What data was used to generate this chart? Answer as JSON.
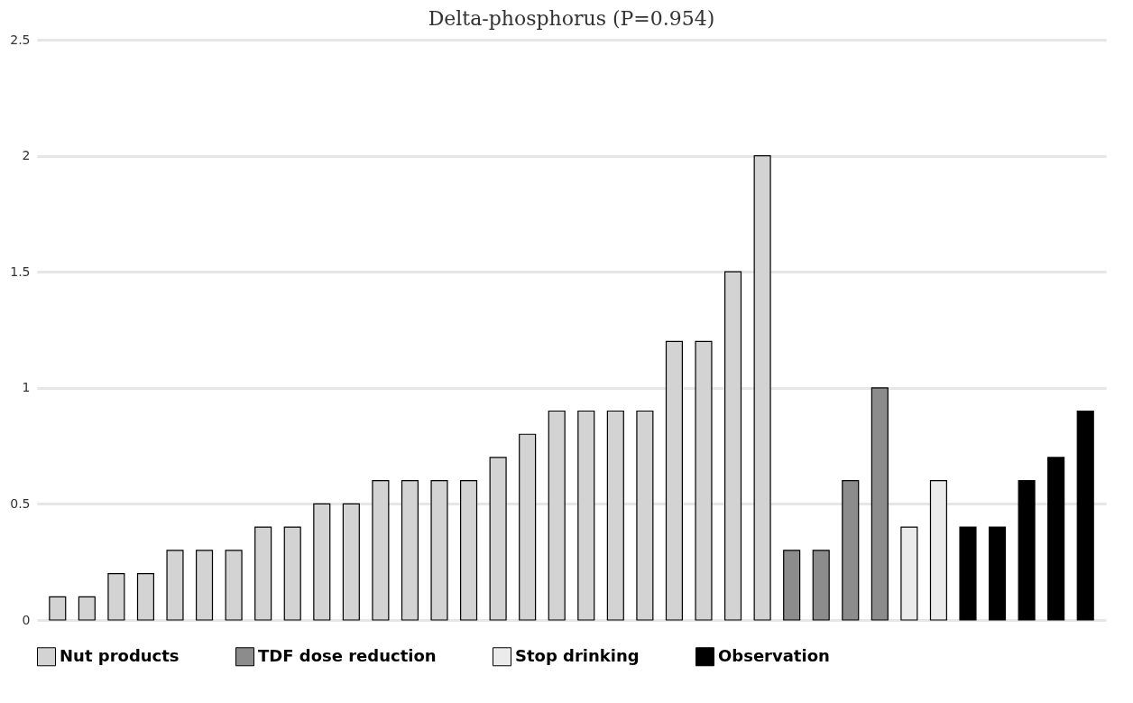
{
  "chart_data": {
    "type": "bar",
    "title": "Delta-phosphorus (P=0.954)",
    "categories": [
      null,
      null,
      null,
      null,
      null,
      null,
      null,
      null,
      null,
      null,
      null,
      null,
      null,
      null,
      null,
      null,
      null,
      null,
      null,
      null,
      null,
      null,
      null,
      null,
      null,
      null,
      null,
      null,
      null,
      null,
      null,
      null,
      null,
      null,
      null,
      null
    ],
    "series": [
      {
        "name": "Nut products",
        "color": "#d3d3d3",
        "values": [
          0.1,
          0.1,
          0.2,
          0.2,
          0.3,
          0.3,
          0.3,
          0.4,
          0.4,
          0.5,
          0.5,
          0.6,
          0.6,
          0.6,
          0.6,
          0.7,
          0.8,
          0.9,
          0.9,
          0.9,
          0.9,
          1.2,
          1.2,
          1.5,
          2.0,
          null,
          null,
          null,
          null,
          null,
          null,
          null,
          null,
          null,
          null,
          null
        ]
      },
      {
        "name": "TDF dose reduction",
        "color": "#8c8c8c",
        "values": [
          null,
          null,
          null,
          null,
          null,
          null,
          null,
          null,
          null,
          null,
          null,
          null,
          null,
          null,
          null,
          null,
          null,
          null,
          null,
          null,
          null,
          null,
          null,
          null,
          null,
          0.3,
          0.3,
          0.6,
          1.0,
          null,
          null,
          null,
          null,
          null,
          null,
          null
        ]
      },
      {
        "name": "Stop drinking",
        "color": "#ebebeb",
        "values": [
          null,
          null,
          null,
          null,
          null,
          null,
          null,
          null,
          null,
          null,
          null,
          null,
          null,
          null,
          null,
          null,
          null,
          null,
          null,
          null,
          null,
          null,
          null,
          null,
          null,
          null,
          null,
          null,
          null,
          0.4,
          0.6,
          null,
          null,
          null,
          null,
          null
        ]
      },
      {
        "name": "Observation",
        "color": "#000000",
        "values": [
          null,
          null,
          null,
          null,
          null,
          null,
          null,
          null,
          null,
          null,
          null,
          null,
          null,
          null,
          null,
          null,
          null,
          null,
          null,
          null,
          null,
          null,
          null,
          null,
          null,
          null,
          null,
          null,
          null,
          null,
          null,
          0.4,
          0.4,
          0.6,
          0.7,
          0.9
        ]
      }
    ],
    "ylim": [
      0,
      2.5
    ],
    "yticks": [
      0,
      0.5,
      1,
      1.5,
      2,
      2.5
    ],
    "grid": "y",
    "legend": "bottom",
    "tick_labels": "y"
  }
}
